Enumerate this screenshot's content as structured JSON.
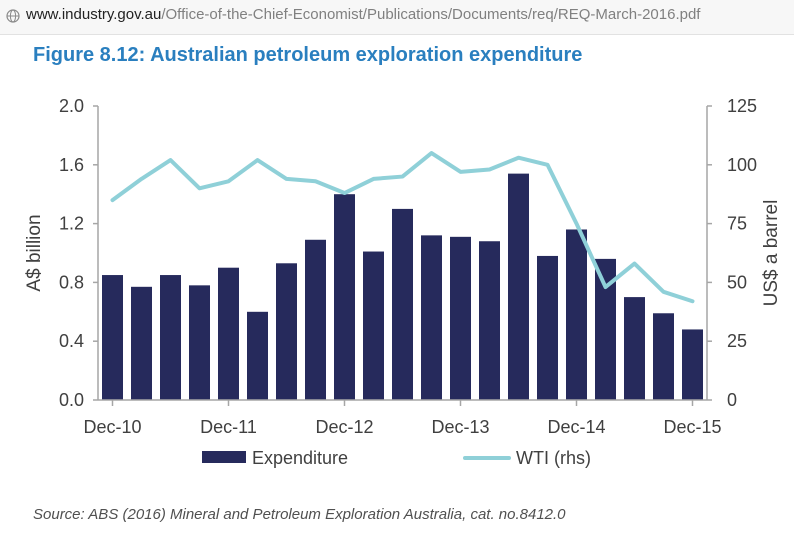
{
  "browser": {
    "url_domain": "www.industry.gov.au",
    "url_path": "/Office-of-the-Chief-Economist/Publications/Documents/req/REQ-March-2016.pdf"
  },
  "figure_title": "Figure 8.12: Australian petroleum exploration expenditure",
  "source_note": "Source: ABS (2016) Mineral and Petroleum Exploration Australia, cat. no.8412.0",
  "colors": {
    "bar": "#262a5c",
    "line": "#8fd0d8",
    "axis": "#a6a6a6",
    "text": "#404040",
    "title": "#2a7fbf"
  },
  "chart_data": {
    "type": "bar",
    "categories": [
      "Dec-10",
      "Mar-11",
      "Jun-11",
      "Sep-11",
      "Dec-11",
      "Mar-12",
      "Jun-12",
      "Sep-12",
      "Dec-12",
      "Mar-13",
      "Jun-13",
      "Sep-13",
      "Dec-13",
      "Mar-14",
      "Jun-14",
      "Sep-14",
      "Dec-14",
      "Mar-15",
      "Jun-15",
      "Sep-15",
      "Dec-15"
    ],
    "x_tick_labels": [
      "Dec-10",
      "Dec-11",
      "Dec-12",
      "Dec-13",
      "Dec-14",
      "Dec-15"
    ],
    "series": [
      {
        "name": "Expenditure",
        "type": "bar",
        "axis": "left",
        "values": [
          0.85,
          0.77,
          0.85,
          0.78,
          0.9,
          0.6,
          0.93,
          1.09,
          1.4,
          1.01,
          1.3,
          1.12,
          1.11,
          1.08,
          1.54,
          0.98,
          1.16,
          0.96,
          0.7,
          0.59,
          0.48
        ]
      },
      {
        "name": "WTI (rhs)",
        "type": "line",
        "axis": "right",
        "values": [
          85,
          94,
          102,
          90,
          93,
          102,
          94,
          93,
          88,
          94,
          95,
          105,
          97,
          98,
          103,
          100,
          75,
          48,
          58,
          46,
          42
        ]
      }
    ],
    "ylabel": "A$ billion",
    "ylim": [
      0,
      2.0
    ],
    "yticks": [
      "0.0",
      "0.4",
      "0.8",
      "1.2",
      "1.6",
      "2.0"
    ],
    "y2label": "US$ a barrel",
    "y2lim": [
      0,
      125
    ],
    "y2ticks": [
      "0",
      "25",
      "50",
      "75",
      "100",
      "125"
    ],
    "grid": false,
    "legend_position": "bottom"
  }
}
